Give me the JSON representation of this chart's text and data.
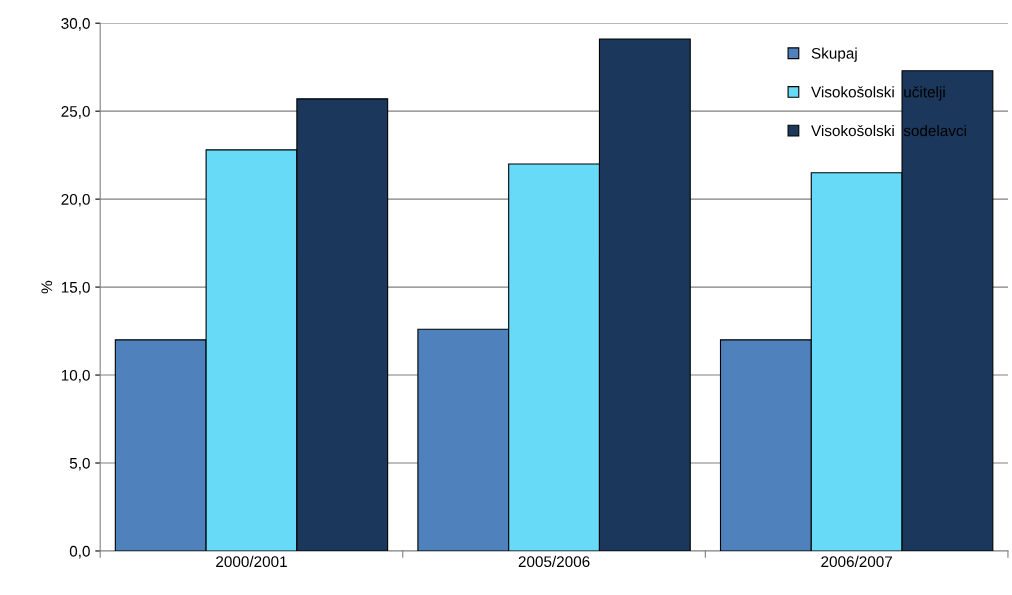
{
  "chart_data": {
    "type": "bar",
    "ylabel": "%",
    "categories": [
      "2000/2001",
      "2005/2006",
      "2006/2007"
    ],
    "series": [
      {
        "name": "Skupaj",
        "color": "#4f81bd",
        "values": [
          12.0,
          12.6,
          12.0
        ]
      },
      {
        "name": "Visokošolski  učitelji",
        "color": "#66daf7",
        "values": [
          22.8,
          22.0,
          21.5
        ]
      },
      {
        "name": "Visokošolski  sodelavci",
        "color": "#1b375c",
        "values": [
          25.7,
          29.1,
          27.3
        ]
      }
    ],
    "ylim": [
      0,
      30
    ],
    "yticks": [
      {
        "value": 0,
        "label": "0,0"
      },
      {
        "value": 5,
        "label": "5,0"
      },
      {
        "value": 10,
        "label": "10,0"
      },
      {
        "value": 15,
        "label": "15,0"
      },
      {
        "value": 20,
        "label": "20,0"
      },
      {
        "value": 25,
        "label": "25,0"
      },
      {
        "value": 30,
        "label": "30,0"
      }
    ],
    "grid": "y",
    "legend": "top right"
  }
}
